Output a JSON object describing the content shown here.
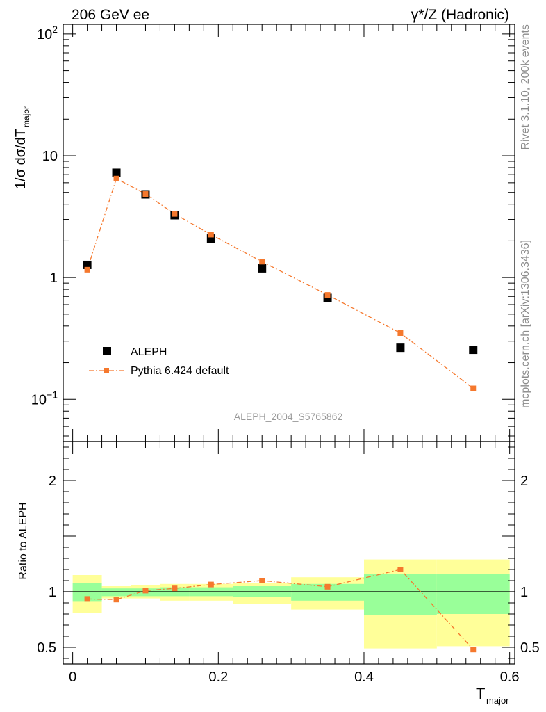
{
  "header": {
    "left": "206 GeV ee",
    "right": "γ*/Z (Hadronic)"
  },
  "side_labels": {
    "rivet": "Rivet 3.1.10,  200k events",
    "source": "mcplots.cern.ch [arXiv:1306.3436]"
  },
  "analysis_id": "ALEPH_2004_S5765862",
  "upper_panel": {
    "ylabel_main": "1/σ  dσ/dT",
    "ylabel_sub": "major",
    "yscale": "log",
    "ylim": [
      0.045,
      120
    ],
    "ytick_labels": [
      {
        "value": 100,
        "base": "10",
        "exp": "2"
      },
      {
        "value": 10,
        "base": "10",
        "exp": ""
      },
      {
        "value": 1,
        "base": "1",
        "exp": ""
      },
      {
        "value": 0.1,
        "base": "10",
        "exp": "−1"
      }
    ]
  },
  "lower_panel": {
    "ylabel": "Ratio to ALEPH",
    "ylim": [
      0.35,
      2.35
    ],
    "ytick_labels": [
      {
        "value": 2,
        "label": "2"
      },
      {
        "value": 1,
        "label": "1"
      },
      {
        "value": 0.5,
        "label": "0.5"
      }
    ]
  },
  "xaxis": {
    "label_main": "T",
    "label_sub": "major",
    "xlim": [
      -0.013,
      0.607
    ],
    "tick_labels": [
      {
        "value": 0,
        "label": "0"
      },
      {
        "value": 0.2,
        "label": "0.2"
      },
      {
        "value": 0.4,
        "label": "0.4"
      },
      {
        "value": 0.6,
        "label": "0.6"
      }
    ]
  },
  "legend": {
    "position": "lower-left",
    "entries": [
      {
        "name": "ALEPH",
        "marker": "square",
        "color": "#000000"
      },
      {
        "name": "Pythia 6.424 default",
        "marker": "small-square-dashdot",
        "color": "#f5782d"
      }
    ]
  },
  "colors": {
    "data": "#000000",
    "mc": "#f5782d",
    "band_inner": "#99ff99",
    "band_outer": "#ffff99"
  },
  "chart_data": [
    {
      "type": "scatter",
      "panel": "upper",
      "series": [
        {
          "name": "ALEPH",
          "x": [
            0.02,
            0.06,
            0.1,
            0.14,
            0.19,
            0.26,
            0.35,
            0.45,
            0.55
          ],
          "y": [
            1.27,
            7.25,
            4.82,
            3.25,
            2.09,
            1.19,
            0.68,
            0.265,
            0.255
          ]
        },
        {
          "name": "Pythia 6.424 default",
          "x": [
            0.02,
            0.06,
            0.1,
            0.14,
            0.19,
            0.26,
            0.35,
            0.45,
            0.55
          ],
          "y": [
            1.16,
            6.5,
            4.85,
            3.33,
            2.25,
            1.35,
            0.72,
            0.35,
            0.123
          ]
        }
      ]
    },
    {
      "type": "line",
      "panel": "lower",
      "reference": 1,
      "bands": [
        {
          "x_low": 0.0,
          "x_high": 0.04,
          "inner": [
            0.91,
            1.08
          ],
          "outer": [
            0.81,
            1.15
          ]
        },
        {
          "x_low": 0.04,
          "x_high": 0.08,
          "inner": [
            0.96,
            1.03
          ],
          "outer": [
            0.94,
            1.05
          ]
        },
        {
          "x_low": 0.08,
          "x_high": 0.12,
          "inner": [
            0.96,
            1.03
          ],
          "outer": [
            0.94,
            1.06
          ]
        },
        {
          "x_low": 0.12,
          "x_high": 0.16,
          "inner": [
            0.96,
            1.04
          ],
          "outer": [
            0.92,
            1.07
          ]
        },
        {
          "x_low": 0.16,
          "x_high": 0.22,
          "inner": [
            0.96,
            1.04
          ],
          "outer": [
            0.92,
            1.07
          ]
        },
        {
          "x_low": 0.22,
          "x_high": 0.3,
          "inner": [
            0.95,
            1.05
          ],
          "outer": [
            0.89,
            1.08
          ]
        },
        {
          "x_low": 0.3,
          "x_high": 0.4,
          "inner": [
            0.92,
            1.07
          ],
          "outer": [
            0.84,
            1.13
          ]
        },
        {
          "x_low": 0.4,
          "x_high": 0.5,
          "inner": [
            0.79,
            1.16
          ],
          "outer": [
            0.49,
            1.29
          ]
        },
        {
          "x_low": 0.5,
          "x_high": 0.6,
          "inner": [
            0.8,
            1.16
          ],
          "outer": [
            0.51,
            1.29
          ]
        }
      ],
      "series": [
        {
          "name": "Pythia 6.424 default",
          "x": [
            0.02,
            0.06,
            0.1,
            0.14,
            0.19,
            0.26,
            0.35,
            0.45,
            0.55
          ],
          "y": [
            0.935,
            0.93,
            1.01,
            1.03,
            1.065,
            1.1,
            1.045,
            1.2,
            0.48
          ]
        }
      ]
    }
  ]
}
